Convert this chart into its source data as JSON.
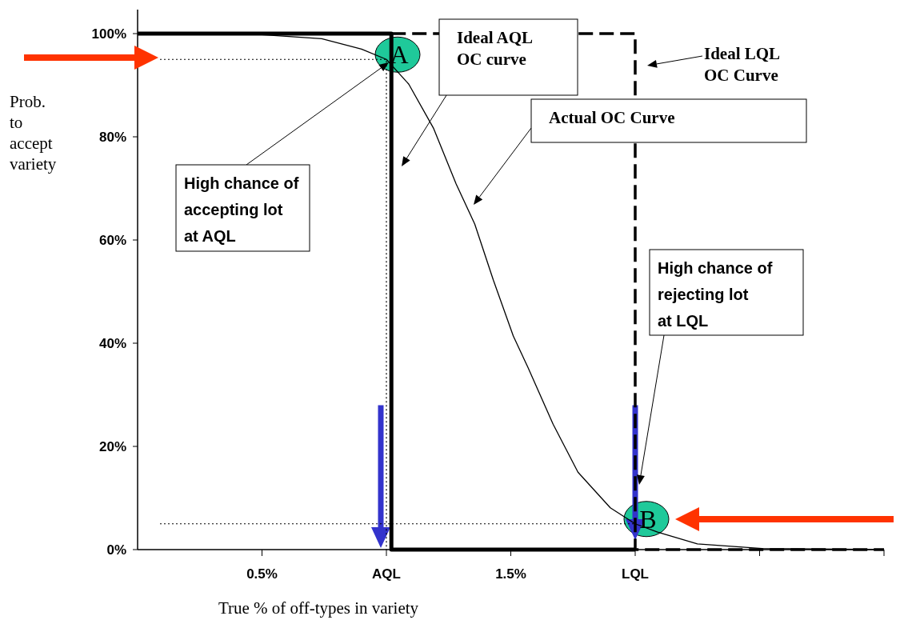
{
  "chart_data": {
    "type": "line",
    "xlabel": "True  % of off-types in variety",
    "ylabel": "Prob. to accept variety",
    "xlim": [
      0,
      3
    ],
    "ylim": [
      0,
      100
    ],
    "xticks": [
      {
        "value": 0.5,
        "label": "0.5%"
      },
      {
        "value": 1,
        "label": "AQL"
      },
      {
        "value": 1.5,
        "label": "1.5%"
      },
      {
        "value": 2,
        "label": "LQL"
      },
      {
        "value": 2.5,
        "label": null
      },
      {
        "value": 3,
        "label": null
      }
    ],
    "yticks": [
      {
        "value": 0,
        "label": "0%"
      },
      {
        "value": 20,
        "label": "20%"
      },
      {
        "value": 40,
        "label": "40%"
      },
      {
        "value": 60,
        "label": "60%"
      },
      {
        "value": 80,
        "label": "80%"
      },
      {
        "value": 100,
        "label": "100%"
      }
    ],
    "grid": false,
    "marker": "none",
    "series": [
      {
        "color": "#000000",
        "line_style": "dashed",
        "x": [
          1.02,
          2,
          2,
          3
        ],
        "values": [
          100,
          100,
          0,
          0
        ]
      },
      {
        "color": "#000000",
        "line_style": "solid",
        "x": [
          0,
          1.02,
          1.02,
          2
        ],
        "values": [
          100,
          100,
          0,
          0
        ]
      },
      {
        "color": "#000000",
        "line_style": "solid",
        "x": [
          0,
          0.5,
          0.74,
          0.9,
          1,
          1.09,
          1.19,
          1.28,
          1.355,
          1.43,
          1.51,
          1.57,
          1.67,
          1.77,
          1.9,
          2,
          2.09,
          2.25,
          2.51,
          3
        ],
        "values": [
          100,
          99.8,
          99,
          97,
          95,
          90.2,
          81.6,
          70.9,
          63.1,
          52.2,
          41.4,
          35.2,
          24.3,
          15,
          8.1,
          5,
          3.4,
          1.1,
          0.2,
          0
        ]
      },
      {
        "color": "#000000",
        "line_style": "dotted",
        "x": [
          0.09,
          1,
          1
        ],
        "values": [
          95,
          95,
          0
        ]
      },
      {
        "color": "#000000",
        "line_style": "dotted",
        "x": [
          0.09,
          2
        ],
        "values": [
          5,
          5
        ]
      }
    ],
    "annotations": [
      "Ideal AQL OC curve",
      "Ideal LQL OC Curve",
      "Actual OC Curve",
      "High chance of accepting lot at AQL",
      "High chance of rejecting lot at LQL",
      {
        "text": "A",
        "x": 1,
        "y": 95
      },
      {
        "text": "B",
        "x": 2,
        "y": 5
      }
    ]
  }
}
